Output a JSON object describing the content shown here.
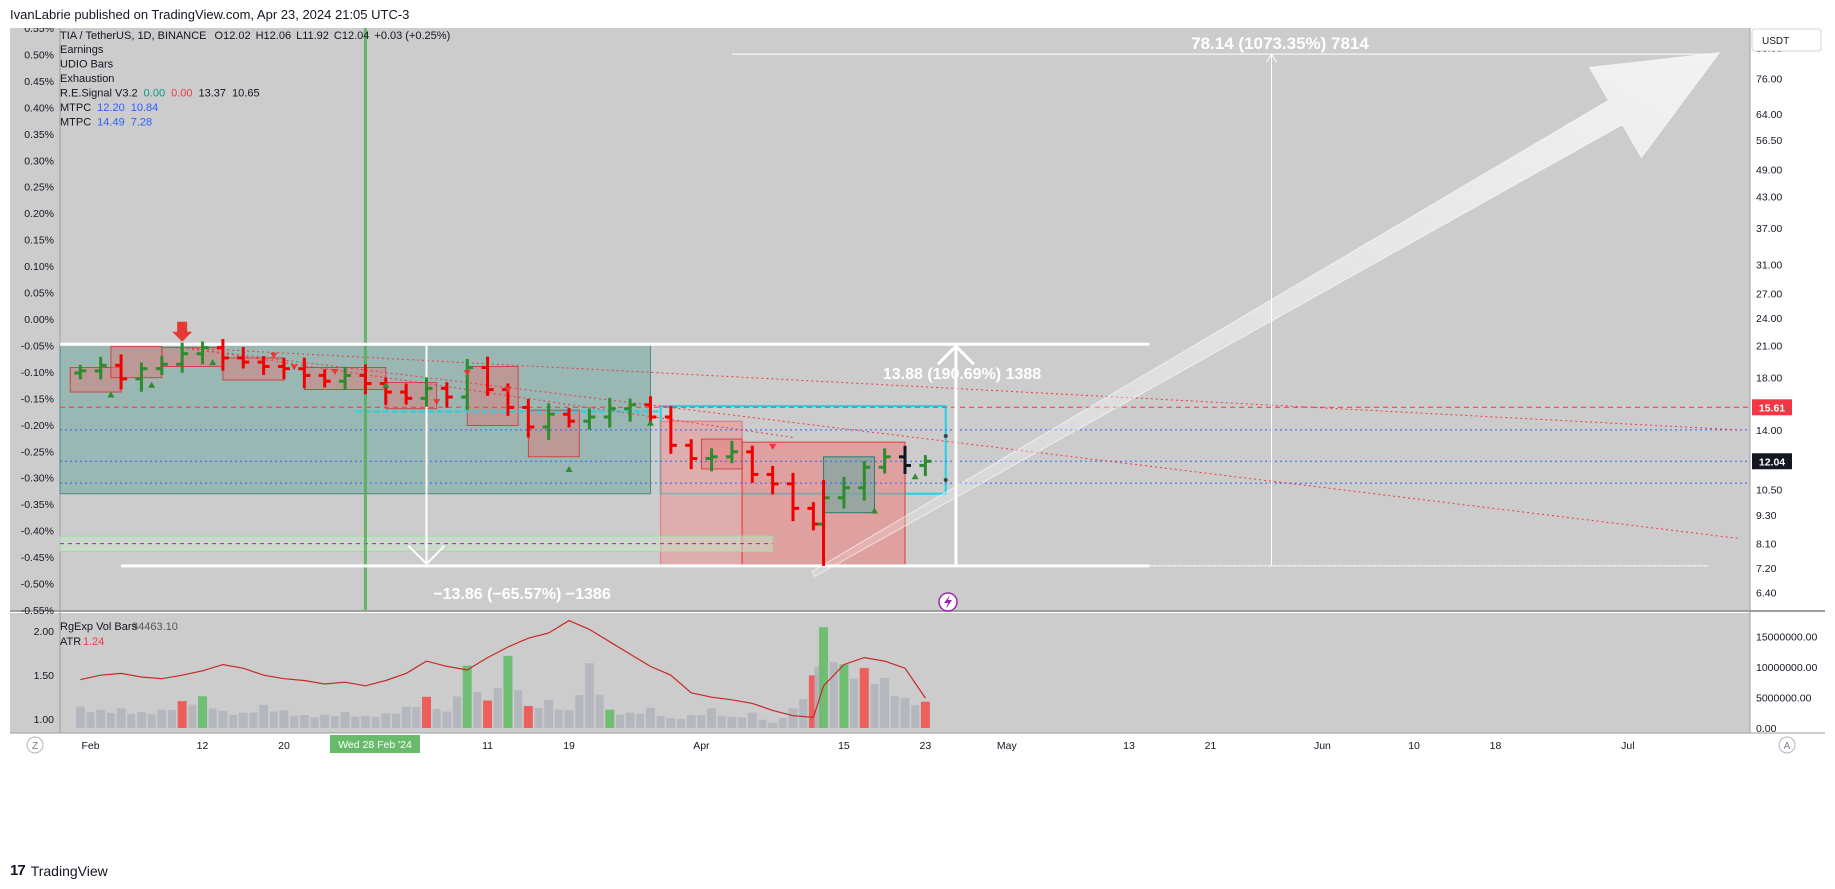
{
  "header": {
    "published": "IvanLabrie published on TradingView.com, Apr 23, 2024 21:05 UTC-3"
  },
  "footer": {
    "logo": "17",
    "brand": "TradingView"
  },
  "legend": {
    "symbol": "TIA / TetherUS, 1D, BINANCE",
    "ohlc": {
      "open": "O12.02",
      "high": "H12.06",
      "low": "L11.92",
      "close": "C12.04",
      "change": "+0.03 (+0.25%)"
    },
    "indicators": [
      {
        "name": "Earnings",
        "values": []
      },
      {
        "name": "UDIO Bars",
        "values": []
      },
      {
        "name": "Exhaustion",
        "values": []
      },
      {
        "name": "R.E.Signal V3.2",
        "values": [
          {
            "v": "0.00",
            "c": "#089981"
          },
          {
            "v": "0.00",
            "c": "#f23645"
          },
          {
            "v": "13.37",
            "c": "#131722"
          },
          {
            "v": "10.65",
            "c": "#131722"
          }
        ]
      },
      {
        "name": "MTPC",
        "values": [
          {
            "v": "12.20",
            "c": "#2962ff"
          },
          {
            "v": "10.84",
            "c": "#2962ff"
          }
        ]
      },
      {
        "name": "MTPC",
        "values": [
          {
            "v": "14.49",
            "c": "#2962ff"
          },
          {
            "v": "7.28",
            "c": "#2962ff"
          }
        ]
      }
    ]
  },
  "pane2_legend": {
    "vol_name": "RgExp Vol Bars",
    "vol_value": "34463.10",
    "atr_name": "ATR",
    "atr_value": "1.24"
  },
  "currency": "USDT",
  "price_axis": [
    "88.00",
    "76.00",
    "64.00",
    "56.50",
    "49.00",
    "43.00",
    "37.00",
    "31.00",
    "27.00",
    "24.00",
    "21.00",
    "18.00",
    "14.00",
    "10.50",
    "9.30",
    "8.10",
    "7.20",
    "6.40"
  ],
  "price_badges": {
    "red": "15.61",
    "current": "12.04"
  },
  "left_axis": [
    "0.55%",
    "0.50%",
    "0.45%",
    "0.40%",
    "0.35%",
    "0.30%",
    "0.25%",
    "0.20%",
    "0.15%",
    "0.10%",
    "0.05%",
    "0.00%",
    "-0.05%",
    "-0.10%",
    "-0.15%",
    "-0.20%",
    "-0.25%",
    "-0.30%",
    "-0.35%",
    "-0.40%",
    "-0.45%",
    "-0.50%",
    "-0.55%"
  ],
  "atr_axis": [
    "2.00",
    "1.50",
    "1.00"
  ],
  "vol_axis": [
    "15000000.00",
    "10000000.00",
    "5000000.00",
    "0.00"
  ],
  "time_axis": [
    "Feb",
    "12",
    "20",
    "11",
    "19",
    "Apr",
    "15",
    "23",
    "May",
    "13",
    "21",
    "Jun",
    "10",
    "18",
    "Jul"
  ],
  "time_badge": "Wed 28 Feb '24",
  "axis_buttons": {
    "left": "Z",
    "right": "A"
  },
  "annotations": {
    "target": "78.14 (1073.35%) 7814",
    "up_measure": "13.88 (190.69%) 1388",
    "down_measure": "−13.86 (−65.57%) −1386"
  },
  "colors": {
    "up": "#089981",
    "down": "#f23645",
    "bull_bar": "#2e8b2e",
    "bear_bar": "#f20000",
    "background": "#cccccc"
  },
  "chart_data": {
    "type": "ohlc",
    "title": "TIA / TetherUS, 1D, BINANCE",
    "price_scale": "log",
    "ylim": [
      6.0,
      95.0
    ],
    "x_range": [
      "2024-01-29",
      "2024-07-13"
    ],
    "series": [
      {
        "name": "TIA / TetherUS",
        "x": [
          "2024-01-31",
          "2024-02-02",
          "2024-02-04",
          "2024-02-06",
          "2024-02-08",
          "2024-02-10",
          "2024-02-12",
          "2024-02-14",
          "2024-02-16",
          "2024-02-18",
          "2024-02-20",
          "2024-02-22",
          "2024-02-24",
          "2024-02-26",
          "2024-02-28",
          "2024-03-01",
          "2024-03-03",
          "2024-03-05",
          "2024-03-07",
          "2024-03-09",
          "2024-03-11",
          "2024-03-13",
          "2024-03-15",
          "2024-03-17",
          "2024-03-19",
          "2024-03-21",
          "2024-03-23",
          "2024-03-25",
          "2024-03-27",
          "2024-03-29",
          "2024-03-31",
          "2024-04-02",
          "2024-04-04",
          "2024-04-06",
          "2024-04-08",
          "2024-04-10",
          "2024-04-12",
          "2024-04-13",
          "2024-04-15",
          "2024-04-17",
          "2024-04-19",
          "2024-04-21",
          "2024-04-23"
        ],
        "values": [
          18.6,
          19.1,
          17.9,
          18.8,
          19.2,
          20.2,
          20.8,
          19.8,
          19.4,
          19.0,
          18.8,
          18.2,
          17.7,
          18.2,
          17.5,
          16.8,
          16.3,
          17.1,
          16.4,
          18.9,
          17.0,
          15.6,
          14.2,
          15.1,
          14.6,
          14.9,
          15.5,
          15.8,
          14.9,
          13.0,
          12.2,
          12.3,
          12.6,
          11.3,
          10.8,
          9.6,
          8.9,
          10.1,
          10.6,
          11.7,
          12.3,
          11.8,
          12.04
        ]
      }
    ],
    "atr": [
      1.45,
      1.5,
      1.52,
      1.48,
      1.46,
      1.5,
      1.55,
      1.62,
      1.58,
      1.5,
      1.46,
      1.44,
      1.4,
      1.42,
      1.38,
      1.44,
      1.52,
      1.66,
      1.6,
      1.56,
      1.7,
      1.82,
      1.92,
      1.98,
      2.12,
      2.02,
      1.88,
      1.74,
      1.6,
      1.5,
      1.3,
      1.25,
      1.22,
      1.18,
      1.1,
      1.04,
      1.02,
      1.38,
      1.62,
      1.7,
      1.66,
      1.58,
      1.24
    ],
    "volume_m": [
      3.5,
      3.0,
      3.2,
      2.6,
      3.0,
      4.4,
      5.2,
      2.8,
      2.5,
      3.8,
      2.9,
      2.1,
      2.2,
      2.6,
      2.0,
      2.4,
      3.5,
      5.1,
      2.7,
      10.2,
      4.5,
      11.8,
      3.6,
      4.6,
      2.9,
      10.6,
      3.0,
      2.5,
      3.3,
      1.6,
      2.1,
      3.2,
      1.8,
      2.5,
      0.9,
      3.2,
      8.6,
      16.5,
      10.4,
      9.8,
      8.2,
      4.9,
      4.3
    ],
    "horizontal_levels": [
      15.61,
      14.0,
      12.04,
      10.84
    ],
    "measure_targets": [
      {
        "label": "78.14 (1073.35%) 7814",
        "from": 7.28,
        "to": 85.42
      },
      {
        "label": "13.88 (190.69%) 1388",
        "from": 7.28,
        "to": 21.16
      },
      {
        "label": "−13.86 (−65.57%) −1386",
        "from": 21.14,
        "to": 7.28
      }
    ]
  }
}
